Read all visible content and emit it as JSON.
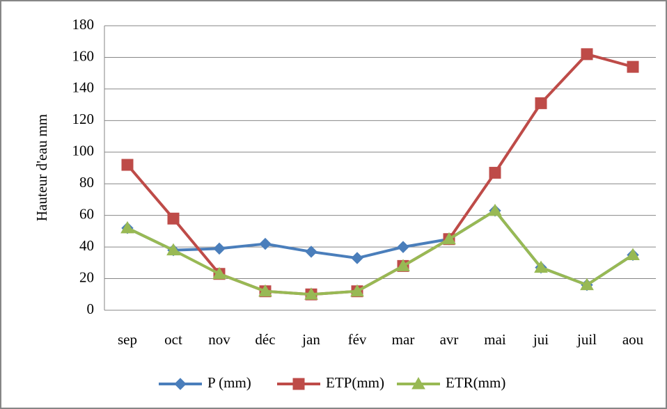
{
  "chart_data": {
    "type": "line",
    "ylabel": "Hauteur d'eau mm",
    "categories": [
      "sep",
      "oct",
      "nov",
      "déc",
      "jan",
      "fév",
      "mar",
      "avr",
      "mai",
      "jui",
      "juil",
      "aou"
    ],
    "series": [
      {
        "name": "P (mm)",
        "color": "#4a7ebb",
        "marker": "diamond",
        "values": [
          52,
          38,
          39,
          42,
          37,
          33,
          40,
          45,
          63,
          27,
          16,
          35
        ]
      },
      {
        "name": "ETP(mm)",
        "color": "#be4b48",
        "marker": "square",
        "values": [
          92,
          58,
          23,
          12,
          10,
          12,
          28,
          45,
          87,
          131,
          162,
          154
        ]
      },
      {
        "name": "ETR(mm)",
        "color": "#98b954",
        "marker": "triangle",
        "values": [
          52,
          38,
          23,
          12,
          10,
          12,
          28,
          45,
          63,
          27,
          16,
          35
        ]
      }
    ],
    "ylim": [
      0,
      180
    ],
    "yticks": [
      0,
      20,
      40,
      60,
      80,
      100,
      120,
      140,
      160,
      180
    ],
    "grid": true,
    "legend": "bottom"
  }
}
